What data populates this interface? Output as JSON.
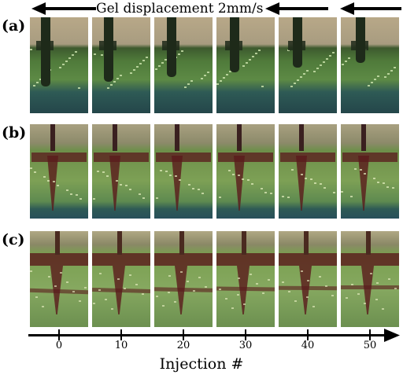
{
  "top_label": "Gel displacement 2mm/s",
  "rows": [
    {
      "label": "(a)",
      "style": "a"
    },
    {
      "label": "(b)",
      "style": "b"
    },
    {
      "label": "(c)",
      "style": "c"
    }
  ],
  "axis": {
    "title": "Injection #",
    "ticks": [
      "0",
      "10",
      "20",
      "30",
      "40",
      "50"
    ]
  },
  "colors": {
    "gel_a": "#4f7a3a",
    "gel_b": "#6d8f4a",
    "gel_c": "#7aa050",
    "dye": "#5a1a1c",
    "needle": "#1e2a1a",
    "bottom_strip": "#2e5a55",
    "sky": "#b8a888"
  }
}
